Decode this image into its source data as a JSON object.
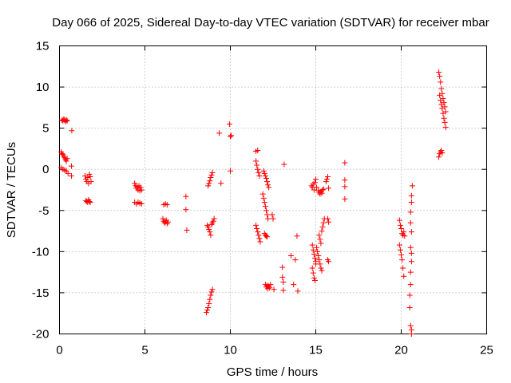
{
  "chart_data": {
    "type": "scatter",
    "title": "Day 066 of 2025, Sidereal Day-to-day VTEC variation (SDTVAR) for receiver mbar",
    "xlabel": "GPS time / hours",
    "ylabel": "SDTVAR / TECUs",
    "xlim": [
      0,
      25
    ],
    "ylim": [
      -20,
      15
    ],
    "xticks": [
      0,
      5,
      10,
      15,
      20,
      25
    ],
    "xtick_labels": [
      "0",
      "5",
      "10",
      "15",
      "20",
      "25"
    ],
    "yticks": [
      -20,
      -15,
      -10,
      -5,
      0,
      5,
      10,
      15
    ],
    "ytick_labels": [
      "-20",
      "-15",
      "-10",
      "-5",
      "0",
      "5",
      "10",
      "15"
    ],
    "grid": true,
    "marker": "plus",
    "color": "#ff0000",
    "series": [
      {
        "name": "SDTVAR",
        "points": [
          [
            0.15,
            6.0
          ],
          [
            0.2,
            5.9
          ],
          [
            0.25,
            6.1
          ],
          [
            0.3,
            6.0
          ],
          [
            0.35,
            5.8
          ],
          [
            0.4,
            6.0
          ],
          [
            0.45,
            5.9
          ],
          [
            0.1,
            2.1
          ],
          [
            0.15,
            1.9
          ],
          [
            0.2,
            1.8
          ],
          [
            0.25,
            1.6
          ],
          [
            0.3,
            1.4
          ],
          [
            0.35,
            1.2
          ],
          [
            0.4,
            1.0
          ],
          [
            0.45,
            1.3
          ],
          [
            0.1,
            0.2
          ],
          [
            0.2,
            0.0
          ],
          [
            0.3,
            -0.1
          ],
          [
            0.4,
            -0.2
          ],
          [
            0.5,
            -0.5
          ],
          [
            0.7,
            -0.8
          ],
          [
            0.7,
            0.4
          ],
          [
            0.72,
            4.7
          ],
          [
            1.5,
            -0.8
          ],
          [
            1.55,
            -1.2
          ],
          [
            1.6,
            -1.5
          ],
          [
            1.65,
            -1.0
          ],
          [
            1.7,
            -1.7
          ],
          [
            1.75,
            -0.6
          ],
          [
            1.8,
            -0.9
          ],
          [
            1.85,
            -1.5
          ],
          [
            1.55,
            -3.8
          ],
          [
            1.6,
            -3.9
          ],
          [
            1.65,
            -4.0
          ],
          [
            1.7,
            -3.7
          ],
          [
            1.75,
            -3.9
          ],
          [
            1.8,
            -4.0
          ],
          [
            4.4,
            -1.7
          ],
          [
            4.45,
            -2.0
          ],
          [
            4.5,
            -2.3
          ],
          [
            4.55,
            -2.1
          ],
          [
            4.6,
            -2.5
          ],
          [
            4.65,
            -2.0
          ],
          [
            4.7,
            -2.6
          ],
          [
            4.75,
            -2.2
          ],
          [
            4.8,
            -2.5
          ],
          [
            4.4,
            -4.0
          ],
          [
            4.5,
            -4.2
          ],
          [
            4.6,
            -4.0
          ],
          [
            4.7,
            -4.1
          ],
          [
            4.8,
            -4.2
          ],
          [
            6.05,
            -6.0
          ],
          [
            6.1,
            -6.3
          ],
          [
            6.15,
            -6.5
          ],
          [
            6.2,
            -6.4
          ],
          [
            6.25,
            -6.2
          ],
          [
            6.3,
            -6.6
          ],
          [
            6.35,
            -6.4
          ],
          [
            6.1,
            -4.3
          ],
          [
            6.2,
            -4.2
          ],
          [
            6.3,
            -4.3
          ],
          [
            7.4,
            -3.3
          ],
          [
            7.4,
            -4.9
          ],
          [
            7.45,
            -7.4
          ],
          [
            8.65,
            -6.8
          ],
          [
            8.7,
            -7.0
          ],
          [
            8.75,
            -7.3
          ],
          [
            8.8,
            -7.6
          ],
          [
            8.85,
            -8.0
          ],
          [
            8.9,
            -6.7
          ],
          [
            8.95,
            -6.5
          ],
          [
            9.0,
            -6.3
          ],
          [
            9.05,
            -6.0
          ],
          [
            8.7,
            -2.0
          ],
          [
            8.75,
            -1.7
          ],
          [
            8.8,
            -1.4
          ],
          [
            8.85,
            -1.0
          ],
          [
            8.9,
            -0.7
          ],
          [
            8.95,
            -0.4
          ],
          [
            8.6,
            -17.4
          ],
          [
            8.65,
            -17.1
          ],
          [
            8.7,
            -16.8
          ],
          [
            8.75,
            -16.3
          ],
          [
            8.8,
            -15.8
          ],
          [
            8.85,
            -15.3
          ],
          [
            8.9,
            -14.9
          ],
          [
            8.95,
            -14.6
          ],
          [
            9.35,
            4.4
          ],
          [
            9.45,
            -1.7
          ],
          [
            9.95,
            5.5
          ],
          [
            10.0,
            4.0
          ],
          [
            10.05,
            4.1
          ],
          [
            10.0,
            -0.2
          ],
          [
            11.5,
            2.2
          ],
          [
            11.6,
            2.3
          ],
          [
            11.5,
            1.0
          ],
          [
            11.55,
            0.5
          ],
          [
            11.6,
            0.0
          ],
          [
            11.65,
            -0.4
          ],
          [
            11.7,
            -0.8
          ],
          [
            11.5,
            -6.8
          ],
          [
            11.55,
            -7.2
          ],
          [
            11.6,
            -7.6
          ],
          [
            11.65,
            -8.0
          ],
          [
            11.7,
            -8.4
          ],
          [
            11.75,
            -8.8
          ],
          [
            11.9,
            -3.0
          ],
          [
            11.95,
            -3.5
          ],
          [
            12.0,
            -4.0
          ],
          [
            12.05,
            -4.5
          ],
          [
            12.1,
            -5.0
          ],
          [
            12.15,
            -5.5
          ],
          [
            12.2,
            -6.0
          ],
          [
            12.0,
            -7.8
          ],
          [
            12.05,
            -8.0
          ],
          [
            12.1,
            -8.1
          ],
          [
            12.15,
            -8.2
          ],
          [
            11.95,
            -0.2
          ],
          [
            12.0,
            -0.5
          ],
          [
            12.05,
            -0.8
          ],
          [
            12.1,
            -1.1
          ],
          [
            12.15,
            -1.5
          ],
          [
            12.2,
            -1.9
          ],
          [
            12.25,
            -2.2
          ],
          [
            12.05,
            -14.0
          ],
          [
            12.1,
            -14.3
          ],
          [
            12.15,
            -14.1
          ],
          [
            12.2,
            -14.5
          ],
          [
            12.25,
            -14.2
          ],
          [
            12.3,
            -14.4
          ],
          [
            12.35,
            -14.0
          ],
          [
            12.45,
            -5.5
          ],
          [
            12.5,
            -6.0
          ],
          [
            12.55,
            -14.6
          ],
          [
            13.05,
            -11.9
          ],
          [
            13.05,
            -13.1
          ],
          [
            13.1,
            -13.7
          ],
          [
            13.1,
            -14.7
          ],
          [
            13.15,
            0.6
          ],
          [
            13.55,
            -10.5
          ],
          [
            13.7,
            -14.0
          ],
          [
            13.8,
            -11.0
          ],
          [
            13.9,
            -8.1
          ],
          [
            13.95,
            -14.8
          ],
          [
            14.75,
            -2.0
          ],
          [
            14.8,
            -2.2
          ],
          [
            14.85,
            -1.8
          ],
          [
            14.9,
            -2.5
          ],
          [
            14.95,
            -1.6
          ],
          [
            15.0,
            -1.2
          ],
          [
            15.05,
            -2.2
          ],
          [
            14.8,
            -9.2
          ],
          [
            14.85,
            -9.8
          ],
          [
            14.9,
            -10.3
          ],
          [
            14.95,
            -10.8
          ],
          [
            15.0,
            -11.2
          ],
          [
            14.8,
            -12.0
          ],
          [
            14.85,
            -12.6
          ],
          [
            14.9,
            -13.2
          ],
          [
            14.95,
            -13.5
          ],
          [
            15.0,
            -11.5
          ],
          [
            15.05,
            -9.5
          ],
          [
            15.1,
            -10.0
          ],
          [
            15.15,
            -10.5
          ],
          [
            15.2,
            -11.0
          ],
          [
            15.25,
            -11.5
          ],
          [
            15.3,
            -12.0
          ],
          [
            15.35,
            -12.3
          ],
          [
            15.2,
            -8.0
          ],
          [
            15.25,
            -8.5
          ],
          [
            15.3,
            -9.0
          ],
          [
            15.35,
            -7.5
          ],
          [
            15.4,
            -7.0
          ],
          [
            15.45,
            -6.5
          ],
          [
            15.5,
            -6.0
          ],
          [
            15.15,
            -2.6
          ],
          [
            15.2,
            -2.8
          ],
          [
            15.25,
            -3.0
          ],
          [
            15.3,
            -2.7
          ],
          [
            15.35,
            -2.9
          ],
          [
            15.4,
            -2.5
          ],
          [
            15.45,
            -2.4
          ],
          [
            15.6,
            -1.5
          ],
          [
            15.65,
            -1.2
          ],
          [
            15.7,
            -0.9
          ],
          [
            15.75,
            -2.3
          ],
          [
            15.7,
            -6.0
          ],
          [
            15.75,
            -6.4
          ],
          [
            15.7,
            -11.0
          ],
          [
            15.75,
            -11.2
          ],
          [
            16.7,
            0.8
          ],
          [
            16.7,
            -1.3
          ],
          [
            16.7,
            -2.1
          ],
          [
            16.7,
            -3.6
          ],
          [
            19.9,
            -6.2
          ],
          [
            19.95,
            -6.8
          ],
          [
            20.0,
            -7.2
          ],
          [
            20.05,
            -7.8
          ],
          [
            20.1,
            -8.0
          ],
          [
            20.15,
            -7.6
          ],
          [
            20.2,
            -8.1
          ],
          [
            19.9,
            -9.2
          ],
          [
            19.95,
            -9.8
          ],
          [
            20.0,
            -10.4
          ],
          [
            20.05,
            -11.0
          ],
          [
            20.1,
            -12.0
          ],
          [
            20.15,
            -13.0
          ],
          [
            20.5,
            -15.3
          ],
          [
            20.5,
            -16.8
          ],
          [
            20.55,
            -19.0
          ],
          [
            20.6,
            -19.5
          ],
          [
            20.6,
            -20.0
          ],
          [
            20.65,
            -2.0
          ],
          [
            20.6,
            -3.2
          ],
          [
            20.6,
            -4.0
          ],
          [
            20.55,
            -5.2
          ],
          [
            20.55,
            -6.5
          ],
          [
            20.6,
            -7.6
          ],
          [
            20.55,
            -9.5
          ],
          [
            20.6,
            -10.2
          ],
          [
            20.6,
            -11.2
          ],
          [
            20.55,
            -12.5
          ],
          [
            20.55,
            -14.0
          ],
          [
            22.2,
            11.8
          ],
          [
            22.25,
            11.3
          ],
          [
            22.3,
            10.6
          ],
          [
            22.35,
            9.8
          ],
          [
            22.4,
            9.2
          ],
          [
            22.45,
            8.6
          ],
          [
            22.5,
            8.1
          ],
          [
            22.55,
            7.6
          ],
          [
            22.6,
            7.0
          ],
          [
            22.25,
            9.0
          ],
          [
            22.3,
            8.4
          ],
          [
            22.35,
            7.9
          ],
          [
            22.4,
            7.4
          ],
          [
            22.45,
            6.8
          ],
          [
            22.5,
            6.2
          ],
          [
            22.55,
            5.7
          ],
          [
            22.6,
            5.1
          ],
          [
            22.2,
            1.5
          ],
          [
            22.25,
            1.9
          ],
          [
            22.3,
            2.1
          ],
          [
            22.35,
            2.3
          ],
          [
            22.4,
            2.0
          ]
        ]
      }
    ]
  }
}
